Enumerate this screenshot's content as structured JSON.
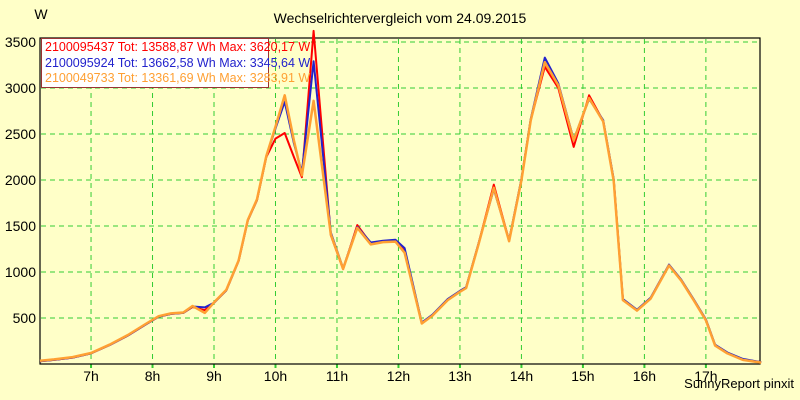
{
  "chart_data": {
    "type": "line",
    "title": "Wechselrichtervergleich vom 24.09.2015",
    "ylabel": "W",
    "watermark": "SunnyReport pinxit",
    "xlim": [
      6.17,
      17.88
    ],
    "ylim": [
      0,
      3543
    ],
    "grid": {
      "style": "dashed",
      "color": "#33CC33"
    },
    "legend_position": "top-left",
    "background_color": "#FFFFC8",
    "x_ticks": [
      {
        "hour": 7,
        "label": "7h"
      },
      {
        "hour": 8,
        "label": "8h"
      },
      {
        "hour": 9,
        "label": "9h"
      },
      {
        "hour": 10,
        "label": "10h"
      },
      {
        "hour": 11,
        "label": "11h"
      },
      {
        "hour": 12,
        "label": "12h"
      },
      {
        "hour": 13,
        "label": "13h"
      },
      {
        "hour": 14,
        "label": "14h"
      },
      {
        "hour": 15,
        "label": "15h"
      },
      {
        "hour": 16,
        "label": "16h"
      },
      {
        "hour": 17,
        "label": "17h"
      }
    ],
    "y_ticks": [
      500,
      1000,
      1500,
      2000,
      2500,
      3000,
      3500
    ],
    "x": [
      6.17,
      6.4,
      6.7,
      7.0,
      7.3,
      7.6,
      7.9,
      8.1,
      8.3,
      8.5,
      8.65,
      8.85,
      9.0,
      9.2,
      9.4,
      9.55,
      9.7,
      9.85,
      10.0,
      10.15,
      10.3,
      10.43,
      10.62,
      10.9,
      11.1,
      11.33,
      11.55,
      11.75,
      11.95,
      12.1,
      12.38,
      12.55,
      12.8,
      13.0,
      13.1,
      13.3,
      13.55,
      13.8,
      14.0,
      14.15,
      14.38,
      14.6,
      14.85,
      15.1,
      15.33,
      15.5,
      15.65,
      15.88,
      16.1,
      16.4,
      16.6,
      16.8,
      17.0,
      17.15,
      17.35,
      17.6,
      17.9
    ],
    "series": [
      {
        "name": "2100095437",
        "legend": "2100095437 Tot: 13588,87 Wh Max: 3620,17 W",
        "total": "13588,87 Wh",
        "max": "3620,17 W",
        "color": "#FF0000",
        "width": 2,
        "values": [
          30,
          45,
          70,
          115,
          205,
          310,
          435,
          515,
          545,
          555,
          620,
          585,
          665,
          800,
          1120,
          1560,
          1780,
          2250,
          2450,
          2510,
          2250,
          2030,
          3620,
          1400,
          1030,
          1510,
          1310,
          1330,
          1330,
          1230,
          445,
          530,
          700,
          790,
          830,
          1300,
          1950,
          1340,
          2000,
          2650,
          3230,
          3000,
          2360,
          2920,
          2640,
          2000,
          700,
          585,
          715,
          1075,
          910,
          700,
          480,
          205,
          120,
          50,
          20
        ]
      },
      {
        "name": "2100095924",
        "legend": "2100095924 Tot: 13662,58 Wh Max: 3345,64 W",
        "total": "13662,58 Wh",
        "max": "3345,64 W",
        "color": "#2222CC",
        "width": 2,
        "values": [
          30,
          45,
          70,
          115,
          205,
          310,
          435,
          515,
          545,
          555,
          625,
          615,
          665,
          800,
          1120,
          1560,
          1785,
          2255,
          2560,
          2850,
          2400,
          2080,
          3290,
          1430,
          1040,
          1490,
          1320,
          1340,
          1350,
          1260,
          450,
          535,
          705,
          795,
          835,
          1305,
          1900,
          1345,
          2010,
          2660,
          3330,
          3050,
          2440,
          2880,
          2650,
          2010,
          705,
          590,
          720,
          1080,
          915,
          705,
          485,
          210,
          125,
          55,
          20
        ]
      },
      {
        "name": "2100049733",
        "legend": "2100049733 Tot: 13361,69 Wh Max: 3283,91 W",
        "total": "13361,69 Wh",
        "max": "3283,91 W",
        "color": "#FFA033",
        "width": 2.5,
        "values": [
          35,
          50,
          75,
          120,
          210,
          315,
          440,
          520,
          550,
          560,
          630,
          555,
          670,
          805,
          1125,
          1565,
          1790,
          2260,
          2580,
          2920,
          2430,
          2050,
          2860,
          1410,
          1035,
          1480,
          1300,
          1325,
          1330,
          1210,
          440,
          525,
          695,
          785,
          825,
          1295,
          1915,
          1335,
          1995,
          2645,
          3280,
          3030,
          2430,
          2890,
          2635,
          1990,
          695,
          580,
          710,
          1070,
          905,
          695,
          475,
          200,
          115,
          45,
          15
        ]
      }
    ]
  }
}
